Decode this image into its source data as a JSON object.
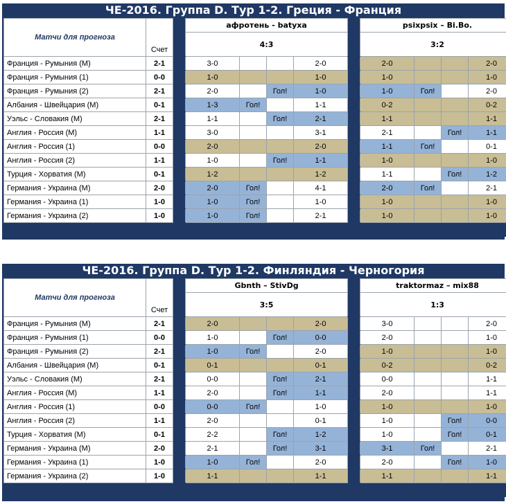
{
  "header_label": "Матчи для прогноза",
  "score_label": "Счет",
  "goal_label": "Гол!",
  "matches": [
    "Франция - Румыния (М)",
    "Франция - Румыния (1)",
    "Франция - Румыния (2)",
    "Албания - Швейцария (М)",
    "Уэльс - Словакия (М)",
    "Англия - Россия (М)",
    "Англия - Россия (1)",
    "Англия - Россия (2)",
    "Турция - Хорватия (М)",
    "Германия - Украина (М)",
    "Германия - Украина (1)",
    "Германия - Украина (2)"
  ],
  "scores": [
    "2-1",
    "0-0",
    "2-1",
    "0-1",
    "2-1",
    "1-1",
    "0-0",
    "1-1",
    "0-1",
    "2-0",
    "1-0",
    "1-0"
  ],
  "panels": [
    {
      "title": "ЧЕ-2016. Группа D. Тур 1-2. Греция - Франция",
      "pairs": [
        {
          "names": "афротень - batyxa",
          "total": "4:3",
          "rows": [
            [
              "3-0",
              "",
              "",
              "2-0"
            ],
            [
              "1-0",
              "",
              "",
              "1-0"
            ],
            [
              "2-0",
              "",
              "Гол!",
              "1-0"
            ],
            [
              "1-3",
              "Гол!",
              "",
              "1-1"
            ],
            [
              "1-1",
              "",
              "Гол!",
              "2-1"
            ],
            [
              "3-0",
              "",
              "",
              "3-1"
            ],
            [
              "2-0",
              "",
              "",
              "2-0"
            ],
            [
              "1-0",
              "",
              "Гол!",
              "1-1"
            ],
            [
              "1-2",
              "",
              "",
              "1-2"
            ],
            [
              "2-0",
              "Гол!",
              "",
              "4-1"
            ],
            [
              "1-0",
              "Гол!",
              "",
              "1-0"
            ],
            [
              "1-0",
              "Гол!",
              "",
              "2-1"
            ]
          ],
          "colors": [
            [
              "w",
              "w",
              "w",
              "w"
            ],
            [
              "t",
              "t",
              "t",
              "t"
            ],
            [
              "w",
              "w",
              "b",
              "b"
            ],
            [
              "b",
              "b",
              "w",
              "w"
            ],
            [
              "w",
              "w",
              "b",
              "b"
            ],
            [
              "w",
              "w",
              "w",
              "w"
            ],
            [
              "t",
              "t",
              "t",
              "t"
            ],
            [
              "w",
              "w",
              "b",
              "b"
            ],
            [
              "t",
              "t",
              "t",
              "t"
            ],
            [
              "b",
              "b",
              "w",
              "w"
            ],
            [
              "b",
              "b",
              "w",
              "w"
            ],
            [
              "b",
              "b",
              "w",
              "w"
            ]
          ]
        },
        {
          "names": "psixpsix – Bi.Bo.",
          "total": "3:2",
          "rows": [
            [
              "2-0",
              "",
              "",
              "2-0"
            ],
            [
              "1-0",
              "",
              "",
              "1-0"
            ],
            [
              "1-0",
              "Гол!",
              "",
              "2-0"
            ],
            [
              "0-2",
              "",
              "",
              "0-2"
            ],
            [
              "1-1",
              "",
              "",
              "1-1"
            ],
            [
              "2-1",
              "",
              "Гол!",
              "1-1"
            ],
            [
              "1-1",
              "Гол!",
              "",
              "0-1"
            ],
            [
              "1-0",
              "",
              "",
              "1-0"
            ],
            [
              "1-1",
              "",
              "Гол!",
              "1-2"
            ],
            [
              "2-0",
              "Гол!",
              "",
              "2-1"
            ],
            [
              "1-0",
              "",
              "",
              "1-0"
            ],
            [
              "1-0",
              "",
              "",
              "1-0"
            ]
          ],
          "colors": [
            [
              "t",
              "t",
              "t",
              "t"
            ],
            [
              "t",
              "t",
              "t",
              "t"
            ],
            [
              "b",
              "b",
              "w",
              "w"
            ],
            [
              "t",
              "t",
              "t",
              "t"
            ],
            [
              "t",
              "t",
              "t",
              "t"
            ],
            [
              "w",
              "w",
              "b",
              "b"
            ],
            [
              "b",
              "b",
              "w",
              "w"
            ],
            [
              "t",
              "t",
              "t",
              "t"
            ],
            [
              "w",
              "w",
              "b",
              "b"
            ],
            [
              "b",
              "b",
              "w",
              "w"
            ],
            [
              "t",
              "t",
              "t",
              "t"
            ],
            [
              "t",
              "t",
              "t",
              "t"
            ]
          ]
        }
      ]
    },
    {
      "title": "ЧЕ-2016. Группа D. Тур 1-2. Финляндия - Черногория",
      "pairs": [
        {
          "names": "Gbnth – StivDg",
          "total": "3:5",
          "rows": [
            [
              "2-0",
              "",
              "",
              "2-0"
            ],
            [
              "1-0",
              "",
              "Гол!",
              "0-0"
            ],
            [
              "1-0",
              "Гол!",
              "",
              "2-0"
            ],
            [
              "0-1",
              "",
              "",
              "0-1"
            ],
            [
              "0-0",
              "",
              "Гол!",
              "2-1"
            ],
            [
              "2-0",
              "",
              "Гол!",
              "1-1"
            ],
            [
              "0-0",
              "Гол!",
              "",
              "1-0"
            ],
            [
              "2-0",
              "",
              "",
              "0-1"
            ],
            [
              "2-2",
              "",
              "Гол!",
              "1-2"
            ],
            [
              "2-1",
              "",
              "Гол!",
              "3-1"
            ],
            [
              "1-0",
              "Гол!",
              "",
              "2-0"
            ],
            [
              "1-1",
              "",
              "",
              "1-1"
            ]
          ],
          "colors": [
            [
              "t",
              "t",
              "t",
              "t"
            ],
            [
              "w",
              "w",
              "b",
              "b"
            ],
            [
              "b",
              "b",
              "w",
              "w"
            ],
            [
              "t",
              "t",
              "t",
              "t"
            ],
            [
              "w",
              "w",
              "b",
              "b"
            ],
            [
              "w",
              "w",
              "b",
              "b"
            ],
            [
              "b",
              "b",
              "w",
              "w"
            ],
            [
              "w",
              "w",
              "w",
              "w"
            ],
            [
              "w",
              "w",
              "b",
              "b"
            ],
            [
              "w",
              "w",
              "b",
              "b"
            ],
            [
              "b",
              "b",
              "w",
              "w"
            ],
            [
              "t",
              "t",
              "t",
              "t"
            ]
          ]
        },
        {
          "names": "traktormaz – mix88",
          "total": "1:3",
          "rows": [
            [
              "3-0",
              "",
              "",
              "2-0"
            ],
            [
              "2-0",
              "",
              "",
              "1-0"
            ],
            [
              "1-0",
              "",
              "",
              "1-0"
            ],
            [
              "0-2",
              "",
              "",
              "0-2"
            ],
            [
              "0-0",
              "",
              "",
              "1-1"
            ],
            [
              "2-0",
              "",
              "",
              "1-1"
            ],
            [
              "1-0",
              "",
              "",
              "1-0"
            ],
            [
              "1-0",
              "",
              "Гол!",
              "0-0"
            ],
            [
              "1-0",
              "",
              "Гол!",
              "0-1"
            ],
            [
              "3-1",
              "Гол!",
              "",
              "2-1"
            ],
            [
              "2-0",
              "",
              "Гол!",
              "1-0"
            ],
            [
              "1-1",
              "",
              "",
              "1-1"
            ]
          ],
          "colors": [
            [
              "w",
              "w",
              "w",
              "w"
            ],
            [
              "w",
              "w",
              "w",
              "w"
            ],
            [
              "t",
              "t",
              "t",
              "t"
            ],
            [
              "t",
              "t",
              "t",
              "t"
            ],
            [
              "w",
              "w",
              "w",
              "w"
            ],
            [
              "w",
              "w",
              "w",
              "w"
            ],
            [
              "t",
              "t",
              "t",
              "t"
            ],
            [
              "w",
              "w",
              "b",
              "b"
            ],
            [
              "w",
              "w",
              "b",
              "b"
            ],
            [
              "b",
              "b",
              "w",
              "w"
            ],
            [
              "w",
              "w",
              "b",
              "b"
            ],
            [
              "t",
              "t",
              "t",
              "t"
            ]
          ]
        }
      ]
    }
  ]
}
